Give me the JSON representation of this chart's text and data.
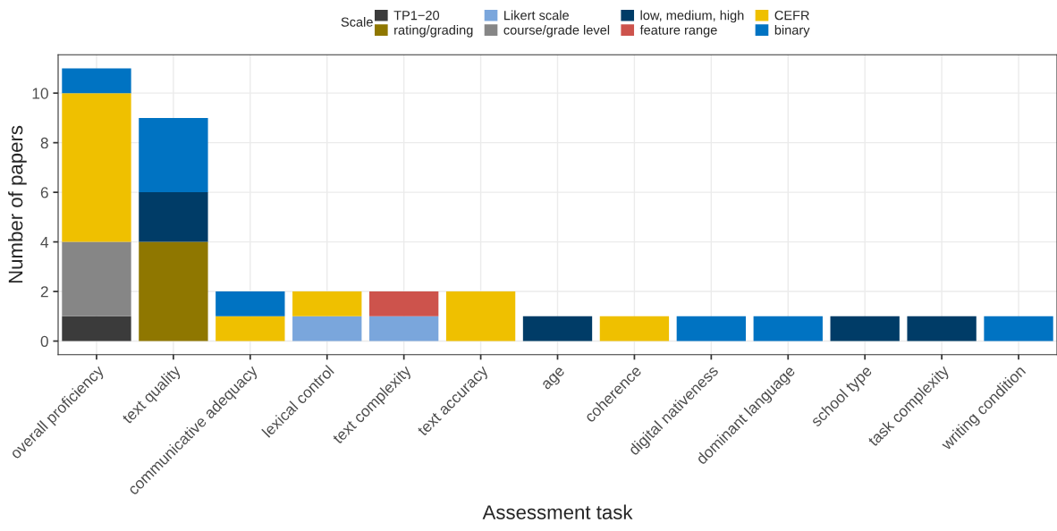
{
  "chart_data": {
    "type": "bar",
    "stacked": true,
    "xlabel": "Assessment task",
    "ylabel": "Number of papers",
    "legend_title": "Scale",
    "legend": "top",
    "grid": true,
    "categories": [
      "overall proficiency",
      "text quality",
      "communicative adequacy",
      "lexical control",
      "text complexity",
      "text accuracy",
      "age",
      "coherence",
      "digital nativeness",
      "dominant language",
      "school type",
      "task complexity",
      "writing condition"
    ],
    "series": [
      {
        "name": "TP1−20",
        "color": "#3b3b3b",
        "values": [
          1,
          null,
          null,
          null,
          null,
          null,
          null,
          null,
          null,
          null,
          null,
          null,
          null
        ]
      },
      {
        "name": "rating/grading",
        "color": "#8f7700",
        "values": [
          null,
          4,
          null,
          null,
          null,
          null,
          null,
          null,
          null,
          null,
          null,
          null,
          null
        ]
      },
      {
        "name": "Likert scale",
        "color": "#7aa6dc",
        "values": [
          null,
          null,
          null,
          1,
          1,
          null,
          null,
          null,
          null,
          null,
          null,
          null,
          null
        ]
      },
      {
        "name": "course/grade level",
        "color": "#868686",
        "values": [
          3,
          null,
          null,
          null,
          null,
          null,
          null,
          null,
          null,
          null,
          null,
          null,
          null
        ]
      },
      {
        "name": "low, medium, high",
        "color": "#003c67",
        "values": [
          null,
          2,
          null,
          null,
          null,
          null,
          1,
          null,
          null,
          null,
          1,
          1,
          null
        ]
      },
      {
        "name": "feature range",
        "color": "#cd534c",
        "values": [
          null,
          null,
          null,
          null,
          1,
          null,
          null,
          null,
          null,
          null,
          null,
          null,
          null
        ]
      },
      {
        "name": "CEFR",
        "color": "#efc000",
        "values": [
          6,
          null,
          1,
          1,
          null,
          2,
          null,
          1,
          null,
          null,
          null,
          null,
          null
        ]
      },
      {
        "name": "binary",
        "color": "#0073c2",
        "values": [
          1,
          3,
          1,
          null,
          null,
          null,
          null,
          null,
          1,
          1,
          null,
          null,
          1
        ]
      }
    ],
    "ylim": [
      -0.55,
      11.55
    ],
    "yticks": [
      0,
      2,
      4,
      6,
      8,
      10
    ]
  }
}
